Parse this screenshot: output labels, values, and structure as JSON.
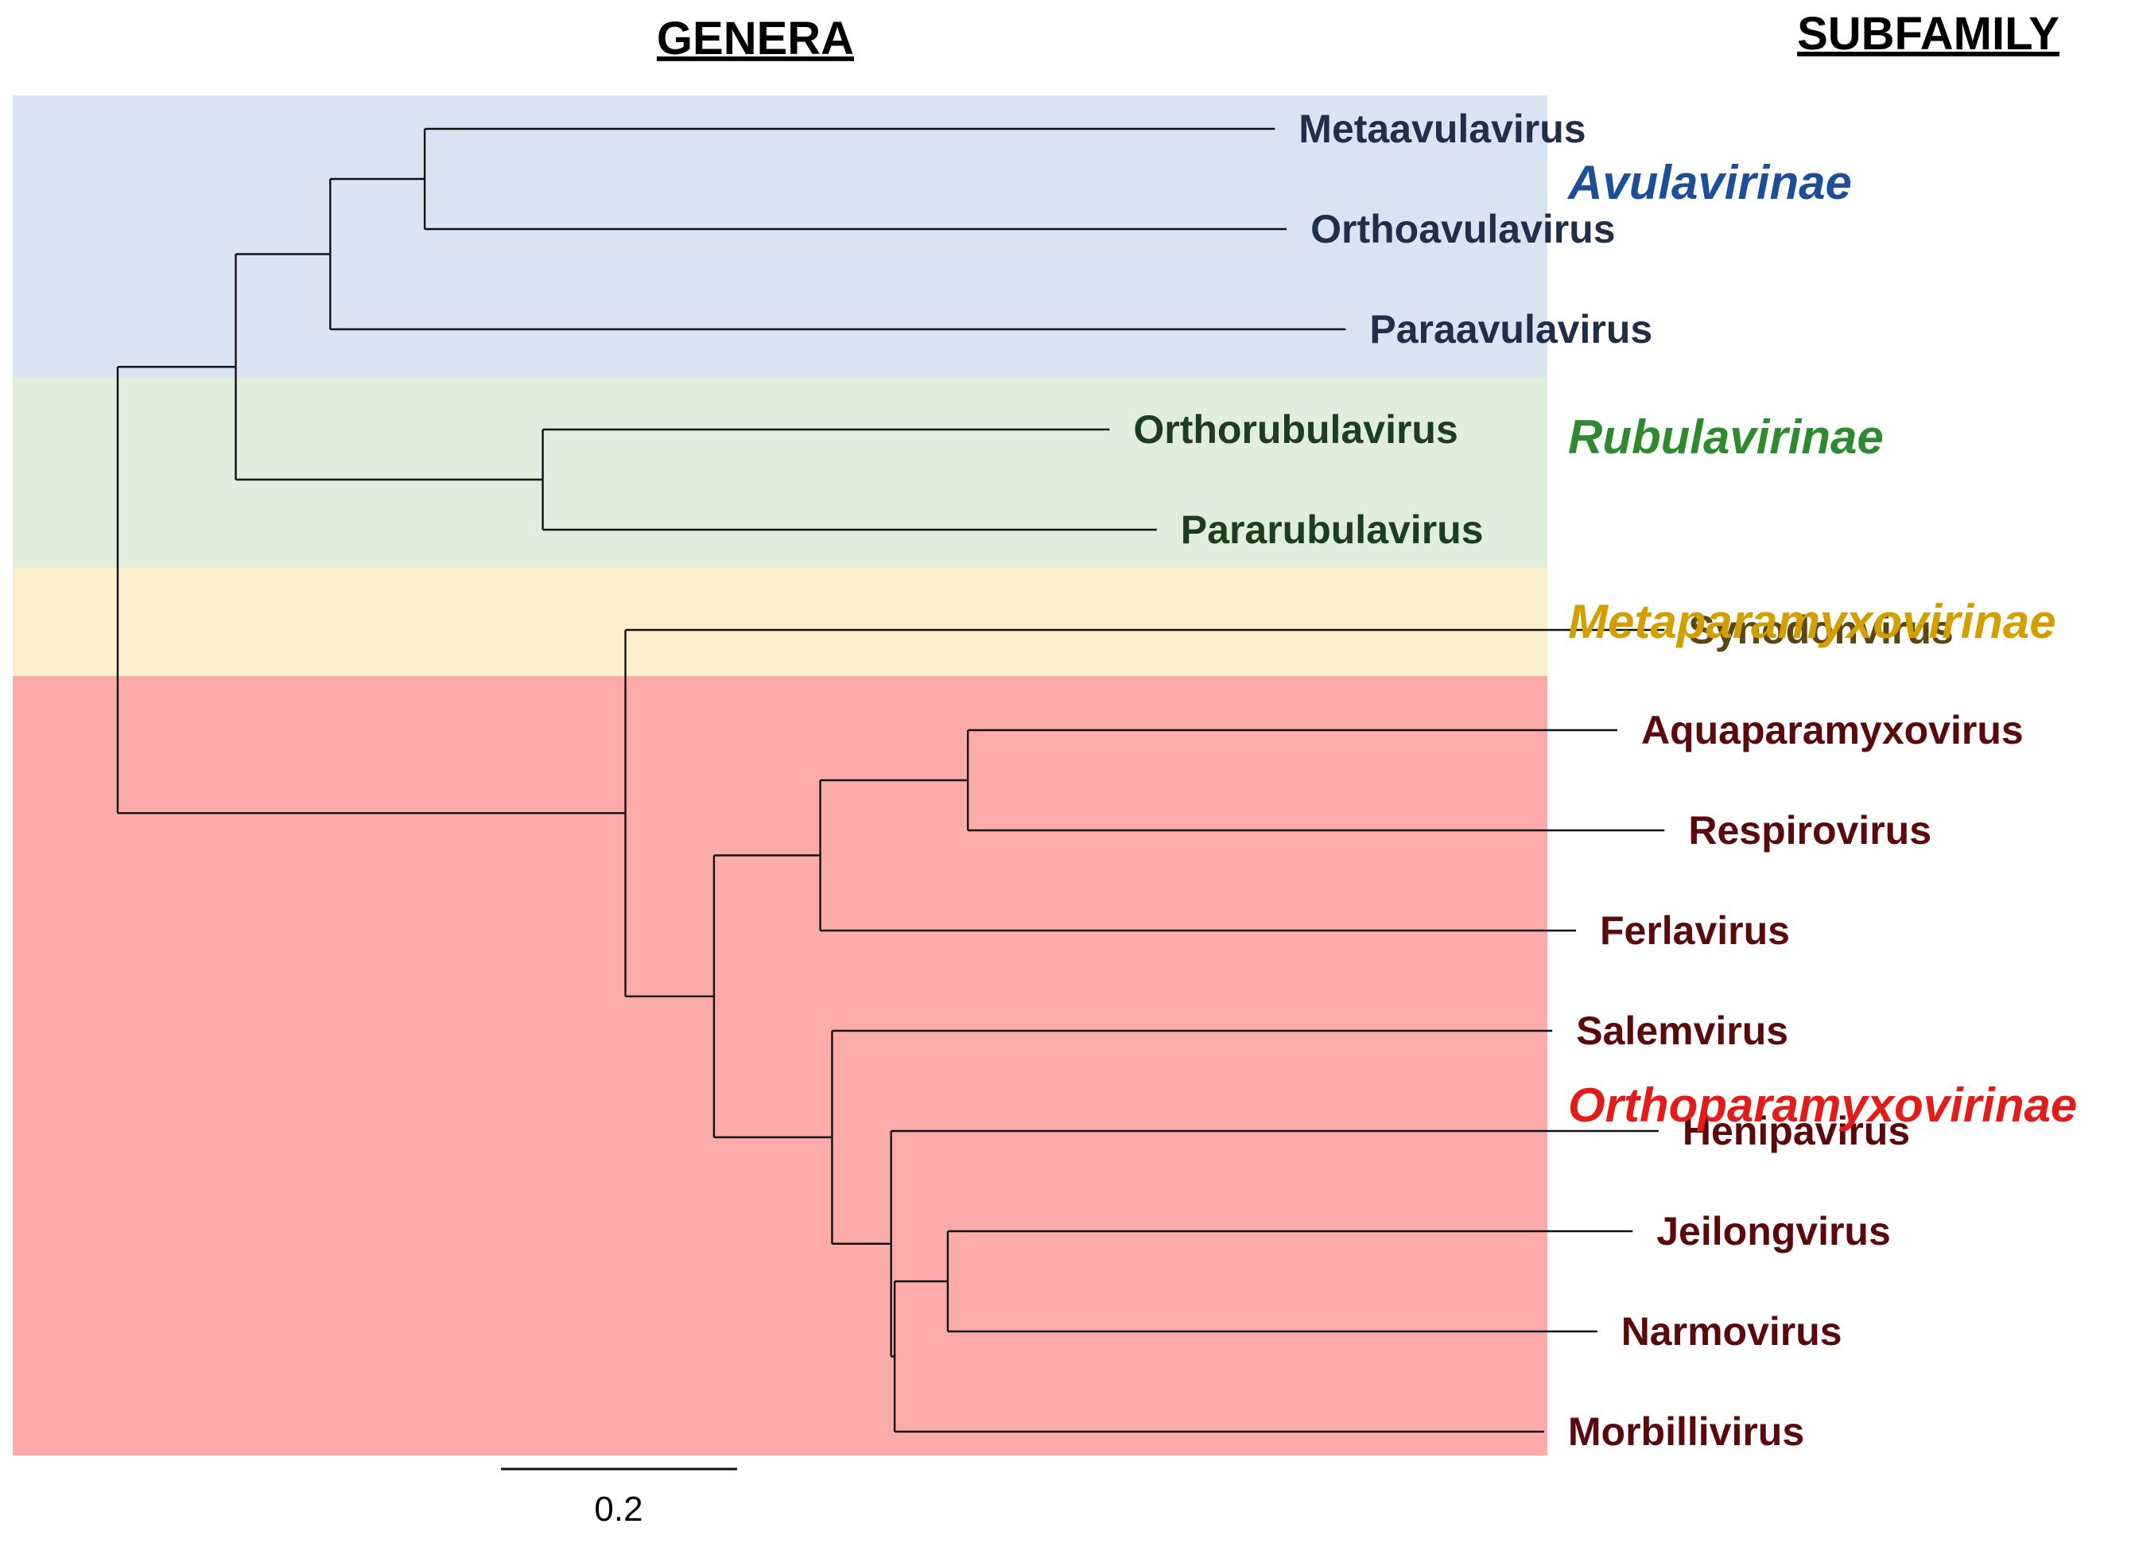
{
  "headers": {
    "genera": "GENERA",
    "subfamily": "SUBFAMILY"
  },
  "scale_bar": {
    "label": "0.2",
    "value": 0.2
  },
  "colors": {
    "avulavirinae_band": "#d9e4f3",
    "rubulavirinae_band": "#e0efdb",
    "metaparamyxovirinae_band": "#fcf0cc",
    "orthoparamyxovirinae_band": "#fdaaaa",
    "avulavirinae_text": "#1f4e99",
    "rubulavirinae_text": "#2e8a2e",
    "metaparamyxovirinae_text": "#d39e00",
    "orthoparamyxovirinae_text": "#e21b1b",
    "avulavirinae_leaf": "#1f2f47",
    "rubulavirinae_leaf": "#1e3d1e",
    "metaparamyxovirinae_leaf": "#5a4611",
    "orthoparamyxovirinae_leaf": "#5a0a0a"
  },
  "subfamilies": [
    {
      "id": "avulavirinae",
      "name": "Avulavirinae",
      "genera": [
        "Metaavulavirus",
        "Orthoavulavirus",
        "Paraavulavirus"
      ]
    },
    {
      "id": "rubulavirinae",
      "name": "Rubulavirinae",
      "genera": [
        "Orthorubulavirus",
        "Pararubulavirus"
      ]
    },
    {
      "id": "metaparamyxovirinae",
      "name": "Metaparamyxovirinae",
      "genera": [
        "Synodonvirus"
      ]
    },
    {
      "id": "orthoparamyxovirinae",
      "name": "Orthoparamyxovirinae",
      "genera": [
        "Aquaparamyxovirus",
        "Respirovirus",
        "Ferlavirus",
        "Salemvirus",
        "Henipavirus",
        "Jeilongvirus",
        "Narmovirus",
        "Morbillivirus"
      ]
    }
  ],
  "tree": {
    "children": [
      {
        "length": 0.1,
        "children": [
          {
            "length": 0.08,
            "children": [
              {
                "length": 0.08,
                "children": [
                  {
                    "name": "Metaavulavirus",
                    "length": 0.72
                  },
                  {
                    "name": "Orthoavulavirus",
                    "length": 0.73
                  }
                ]
              },
              {
                "name": "Paraavulavirus",
                "length": 0.86
              }
            ]
          },
          {
            "length": 0.26,
            "children": [
              {
                "name": "Orthorubulavirus",
                "length": 0.48
              },
              {
                "name": "Pararubulavirus",
                "length": 0.52
              }
            ]
          }
        ]
      },
      {
        "length": 0.43,
        "children": [
          {
            "name": "Synodonvirus",
            "length": 0.88
          },
          {
            "length": 0.075,
            "children": [
              {
                "length": 0.09,
                "children": [
                  {
                    "length": 0.125,
                    "children": [
                      {
                        "name": "Aquaparamyxovirus",
                        "length": 0.55
                      },
                      {
                        "name": "Respirovirus",
                        "length": 0.59
                      }
                    ]
                  },
                  {
                    "name": "Ferlavirus",
                    "length": 0.64
                  }
                ]
              },
              {
                "length": 0.1,
                "children": [
                  {
                    "name": "Salemvirus",
                    "length": 0.61
                  },
                  {
                    "length": 0.05,
                    "children": [
                      {
                        "name": "Henipavirus",
                        "length": 0.65
                      },
                      {
                        "length": 0.003,
                        "children": [
                          {
                            "length": 0.045,
                            "children": [
                              {
                                "name": "Jeilongvirus",
                                "length": 0.58
                              },
                              {
                                "name": "Narmovirus",
                                "length": 0.55
                              }
                            ]
                          },
                          {
                            "name": "Morbillivirus",
                            "length": 0.55
                          }
                        ]
                      }
                    ]
                  }
                ]
              }
            ]
          }
        ]
      }
    ]
  }
}
